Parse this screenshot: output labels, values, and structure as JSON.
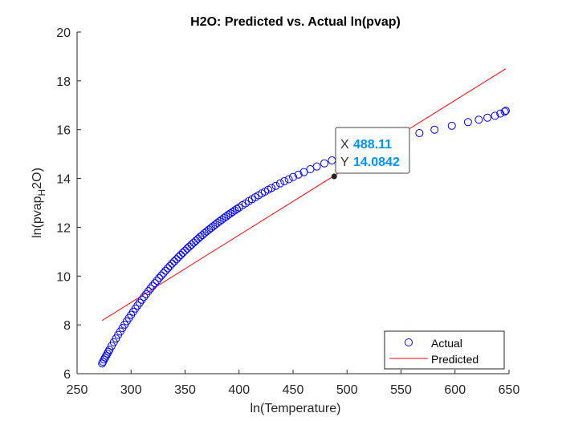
{
  "chart_data": {
    "type": "scatter",
    "title": "H2O: Predicted vs. Actual ln(pvap)",
    "xlabel": "ln(Temperature)",
    "ylabel_main": "ln(pvap",
    "ylabel_sub": "H",
    "ylabel_end": "2O)",
    "xlim": [
      250,
      650
    ],
    "ylim": [
      6,
      20
    ],
    "xticks": [
      250,
      300,
      350,
      400,
      450,
      500,
      550,
      600,
      650
    ],
    "yticks": [
      6,
      8,
      10,
      12,
      14,
      16,
      18,
      20
    ],
    "grid": false,
    "legend_position": "bottom-right",
    "series": [
      {
        "name": "Actual",
        "kind": "markers",
        "marker": "circle",
        "color": "#0000ff",
        "points": [
          [
            273.2,
            6.42
          ],
          [
            274,
            6.49
          ],
          [
            275,
            6.58
          ],
          [
            276,
            6.66
          ],
          [
            277,
            6.74
          ],
          [
            278,
            6.82
          ],
          [
            279,
            6.9
          ],
          [
            280,
            6.98
          ],
          [
            282,
            7.14
          ],
          [
            284,
            7.29
          ],
          [
            286,
            7.44
          ],
          [
            288,
            7.59
          ],
          [
            290,
            7.73
          ],
          [
            292,
            7.87
          ],
          [
            294,
            8.01
          ],
          [
            296,
            8.15
          ],
          [
            298,
            8.28
          ],
          [
            300,
            8.41
          ],
          [
            302,
            8.54
          ],
          [
            304,
            8.67
          ],
          [
            306,
            8.79
          ],
          [
            308,
            8.91
          ],
          [
            310,
            9.03
          ],
          [
            312,
            9.15
          ],
          [
            314,
            9.26
          ],
          [
            316,
            9.38
          ],
          [
            318,
            9.49
          ],
          [
            320,
            9.6
          ],
          [
            322,
            9.71
          ],
          [
            324,
            9.81
          ],
          [
            326,
            9.92
          ],
          [
            328,
            10.02
          ],
          [
            330,
            10.12
          ],
          [
            332,
            10.22
          ],
          [
            334,
            10.32
          ],
          [
            336,
            10.41
          ],
          [
            338,
            10.51
          ],
          [
            340,
            10.6
          ],
          [
            342,
            10.69
          ],
          [
            344,
            10.78
          ],
          [
            346,
            10.87
          ],
          [
            348,
            10.96
          ],
          [
            350,
            11.04
          ],
          [
            352,
            11.13
          ],
          [
            354,
            11.21
          ],
          [
            356,
            11.29
          ],
          [
            358,
            11.37
          ],
          [
            360,
            11.45
          ],
          [
            362,
            11.53
          ],
          [
            364,
            11.61
          ],
          [
            366,
            11.68
          ],
          [
            368,
            11.76
          ],
          [
            370,
            11.83
          ],
          [
            372,
            11.9
          ],
          [
            374,
            11.97
          ],
          [
            376,
            12.04
          ],
          [
            378,
            12.11
          ],
          [
            380,
            12.18
          ],
          [
            382,
            12.25
          ],
          [
            384,
            12.31
          ],
          [
            386,
            12.38
          ],
          [
            388,
            12.44
          ],
          [
            390,
            12.51
          ],
          [
            392,
            12.57
          ],
          [
            394,
            12.63
          ],
          [
            396,
            12.69
          ],
          [
            398,
            12.75
          ],
          [
            400,
            12.81
          ],
          [
            403,
            12.9
          ],
          [
            406,
            12.98
          ],
          [
            409,
            13.07
          ],
          [
            412,
            13.15
          ],
          [
            415,
            13.23
          ],
          [
            418,
            13.31
          ],
          [
            421,
            13.39
          ],
          [
            424,
            13.46
          ],
          [
            427,
            13.54
          ],
          [
            430,
            13.61
          ],
          [
            434,
            13.7
          ],
          [
            438,
            13.8
          ],
          [
            442,
            13.89
          ],
          [
            446,
            13.97
          ],
          [
            450,
            14.06
          ],
          [
            455,
            14.16
          ],
          [
            460,
            14.26
          ],
          [
            466,
            14.38
          ],
          [
            472,
            14.49
          ],
          [
            479,
            14.62
          ],
          [
            486,
            14.74
          ],
          [
            494,
            14.88
          ],
          [
            502,
            15.01
          ],
          [
            511,
            15.15
          ],
          [
            520,
            15.28
          ],
          [
            530,
            15.42
          ],
          [
            541,
            15.56
          ],
          [
            553,
            15.71
          ],
          [
            567,
            15.86
          ],
          [
            581,
            16.0
          ],
          [
            597,
            16.16
          ],
          [
            612,
            16.31
          ],
          [
            622,
            16.41
          ],
          [
            630,
            16.49
          ],
          [
            637,
            16.57
          ],
          [
            642,
            16.66
          ],
          [
            646,
            16.74
          ],
          [
            647,
            16.78
          ]
        ]
      },
      {
        "name": "Predicted",
        "kind": "line",
        "color": "#ff0000",
        "points": [
          [
            273.2,
            8.18
          ],
          [
            647,
            18.5
          ]
        ]
      }
    ],
    "datatip": {
      "x_label": "X",
      "x_value": "488.11",
      "y_label": "Y",
      "y_value": "14.0842",
      "x": 488.11,
      "y": 14.0842
    }
  }
}
